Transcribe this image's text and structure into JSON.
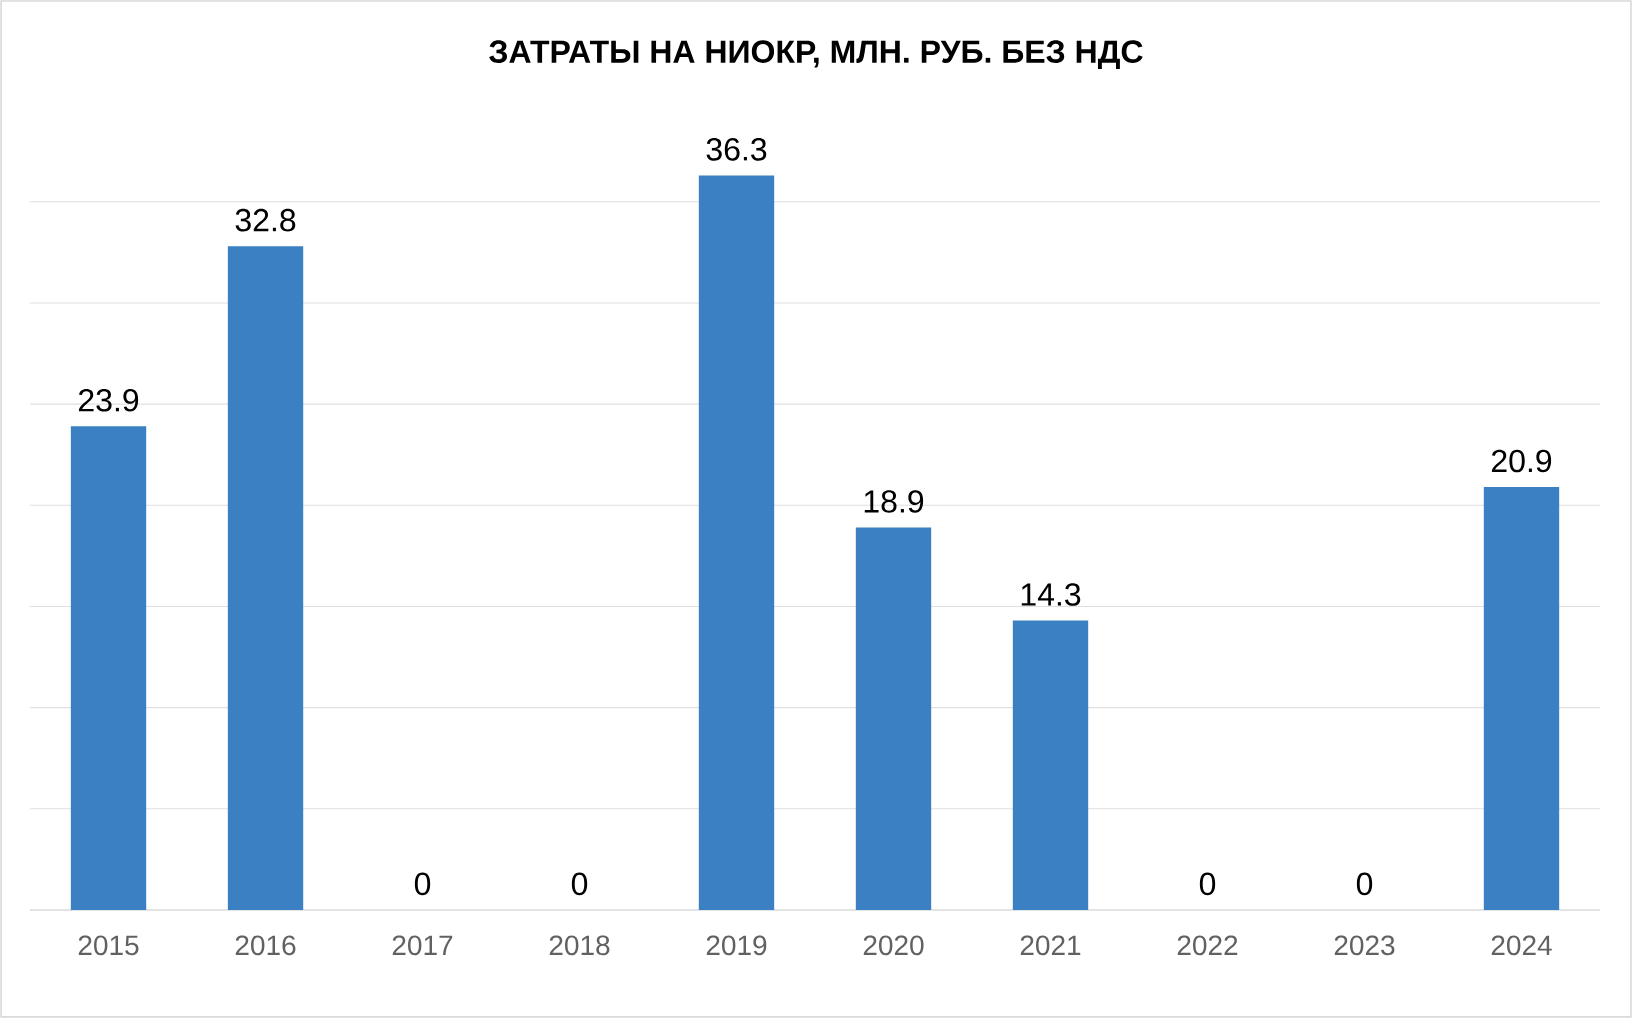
{
  "chart_data": {
    "type": "bar",
    "title": "ЗАТРАТЫ НА НИОКР, МЛН. РУБ. БЕЗ НДС",
    "categories": [
      "2015",
      "2016",
      "2017",
      "2018",
      "2019",
      "2020",
      "2021",
      "2022",
      "2023",
      "2024"
    ],
    "values": [
      23.9,
      32.8,
      0,
      0,
      36.3,
      18.9,
      14.3,
      0,
      0,
      20.9
    ],
    "color": "#3a80c2",
    "grid": "y",
    "tick_labels": "x",
    "data_labels": true
  }
}
